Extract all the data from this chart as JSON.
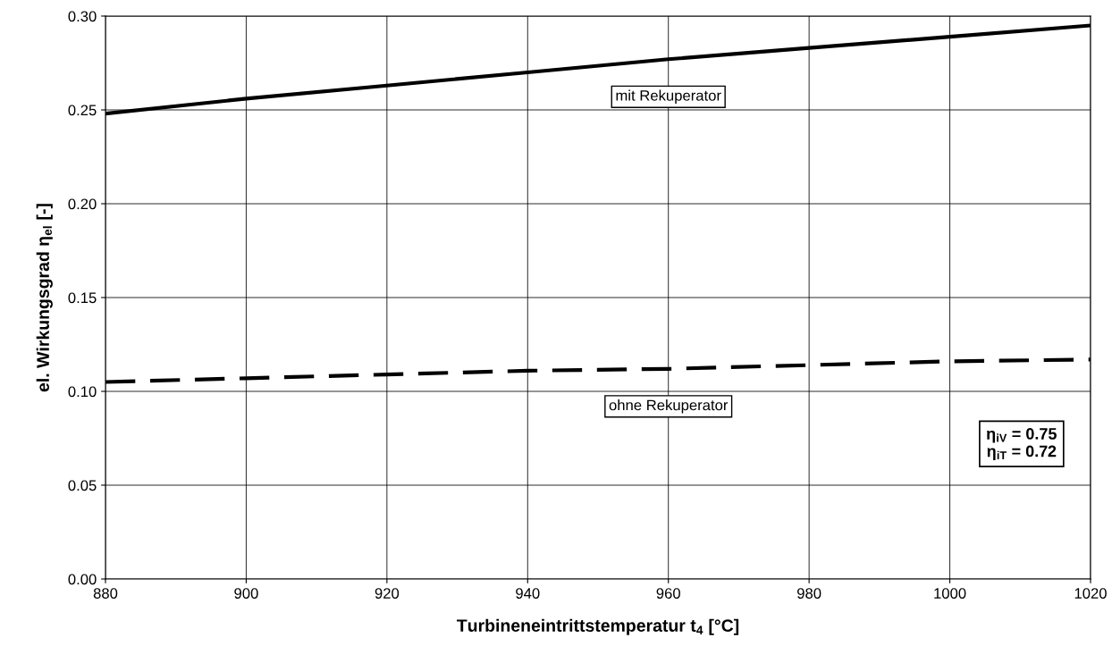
{
  "chart_data": {
    "type": "line",
    "xlabel": "Turbineneintrittstemperatur t$_{4}$ [°C]",
    "ylabel": "el. Wirkungsgrad η$_{el}$ [-]",
    "x": [
      880,
      900,
      920,
      940,
      960,
      980,
      1000,
      1020
    ],
    "series": [
      {
        "name": "mit Rekuperator",
        "color": "#000000",
        "line_style": "solid",
        "values": [
          0.248,
          0.256,
          0.263,
          0.27,
          0.277,
          0.283,
          0.289,
          0.295
        ]
      },
      {
        "name": "ohne Rekuperator",
        "color": "#000000",
        "line_style": "dashed",
        "values": [
          0.105,
          0.107,
          0.109,
          0.111,
          0.112,
          0.114,
          0.116,
          0.117
        ]
      }
    ],
    "annotations": [
      "η$_{iV}$ = 0.75\nη$_{iT}$ = 0.72"
    ],
    "xlim": [
      880,
      1020
    ],
    "xticks": [
      880,
      900,
      920,
      940,
      960,
      980,
      1000,
      1020
    ],
    "ylim": [
      0,
      0.3
    ],
    "yticks": [
      {
        "value": 0,
        "label": "0.00"
      },
      {
        "value": 0.05,
        "label": "0.05"
      },
      {
        "value": 0.1,
        "label": "0.10"
      },
      {
        "value": 0.15,
        "label": "0.15"
      },
      {
        "value": 0.2,
        "label": "0.20"
      },
      {
        "value": 0.25,
        "label": "0.25"
      },
      {
        "value": 0.3,
        "label": "0.30"
      }
    ],
    "grid": true,
    "marker": "none"
  }
}
